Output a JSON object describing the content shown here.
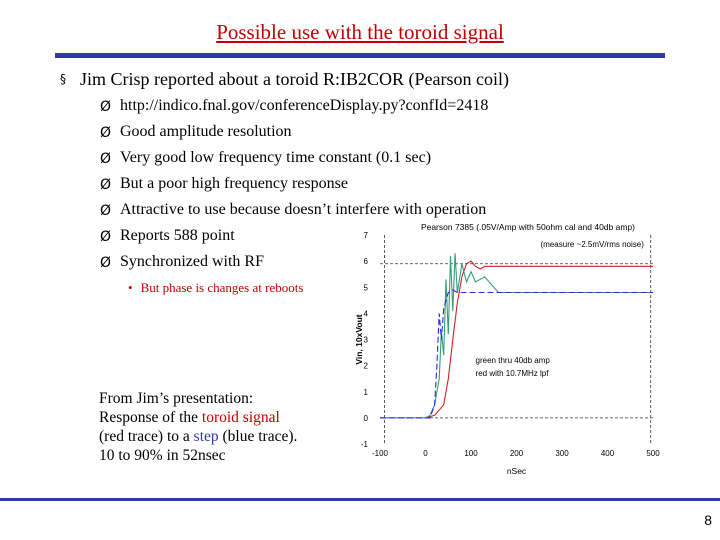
{
  "slide": {
    "title": "Possible use with the toroid signal",
    "main_bullet_marker": "§",
    "main_bullet": "Jim Crisp reported about a toroid R:IB2COR (Pearson coil)",
    "sub_marker": "Ø",
    "sub_bullets": [
      "http://indico.fnal.gov/conferenceDisplay.py?confId=2418",
      "Good amplitude resolution",
      "Very good low frequency time constant (0.1 sec)",
      "But a poor high frequency response",
      "Attractive to use because doesn’t interfere with operation",
      "Reports 588 point",
      "Synchronized with RF"
    ],
    "sub_sub_marker": "•",
    "sub_sub_bullet": "But phase is changes at reboots",
    "caption": {
      "line1": "From Jim’s presentation:",
      "line2_pre": "Response of the ",
      "line2_red": "toroid signal",
      "line3_pre": "(red trace) to a ",
      "line3_blue": "step",
      "line3_post": " (blue trace).",
      "line4": "10 to 90% in 52nsec"
    },
    "page_number": "8"
  },
  "chart_data": {
    "type": "line",
    "title": "Pearson 7385 (.05V/Amp with 50ohm cal and 40db amp)",
    "annotation_top": "(measure ~2.5mV/rms noise)",
    "annotation_mid_1": "green thru 40db amp",
    "annotation_mid_2": "red with 10.7MHz lpf",
    "xlabel": "nSec",
    "ylabel": "Vin, 10xVout",
    "xlim": [
      -100,
      500
    ],
    "ylim": [
      -1,
      7
    ],
    "x_ticks": [
      "-100",
      "0",
      "100",
      "200",
      "300",
      "400",
      "500"
    ],
    "y_ticks": [
      "-1",
      "0",
      "1",
      "2",
      "3",
      "4",
      "5",
      "6",
      "7"
    ],
    "reference_lines": {
      "y_upper": 5.9,
      "y_lower": 0,
      "x_left": -90,
      "x_right": 495
    },
    "series": [
      {
        "color": "#cc2222",
        "x": [
          -100,
          0,
          20,
          40,
          50,
          60,
          70,
          80,
          90,
          100,
          110,
          120,
          130,
          140,
          150,
          160,
          180,
          200,
          250,
          300,
          400,
          500
        ],
        "y": [
          0,
          0,
          0.1,
          0.5,
          1.5,
          3.0,
          4.4,
          5.4,
          5.9,
          6.0,
          5.8,
          5.7,
          5.8,
          5.8,
          5.8,
          5.8,
          5.8,
          5.8,
          5.8,
          5.8,
          5.8,
          5.8
        ]
      },
      {
        "color": "#3a9a7a",
        "x": [
          -100,
          0,
          10,
          20,
          30,
          35,
          40,
          45,
          50,
          55,
          60,
          65,
          70,
          80,
          90,
          100,
          110,
          130,
          160,
          200,
          300,
          500
        ],
        "y": [
          0,
          0,
          0.1,
          0.5,
          1.5,
          3.3,
          2.4,
          5.3,
          3.2,
          6.2,
          4.1,
          6.3,
          4.8,
          5.9,
          5.2,
          5.6,
          5.2,
          5.4,
          4.8,
          4.8,
          4.8,
          4.8
        ]
      },
      {
        "color": "#2a2ad8",
        "x": [
          -100,
          0,
          10,
          20,
          25,
          30,
          35,
          40,
          50,
          60,
          70,
          500
        ],
        "y": [
          0,
          0,
          0,
          0.5,
          2.0,
          4.0,
          3.0,
          4.2,
          4.8,
          4.9,
          4.8,
          4.8
        ]
      }
    ]
  }
}
